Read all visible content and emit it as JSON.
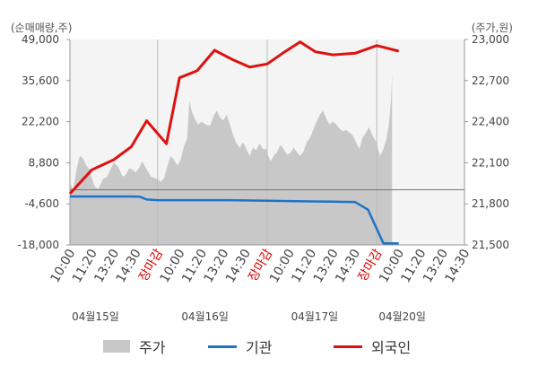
{
  "chart_data": {
    "type": "line",
    "left_axis_unit": "(순매매량,주)",
    "right_axis_unit": "(주가,원)",
    "left_ticks": [
      "49,000",
      "35,600",
      "22,200",
      "8,800",
      "-4,600",
      "-18,000"
    ],
    "left_range": [
      -18000,
      49000
    ],
    "right_ticks": [
      "23,000",
      "22,700",
      "22,400",
      "22,100",
      "21,800",
      "21,500"
    ],
    "right_range": [
      21500,
      23000
    ],
    "x_ticks": [
      {
        "label": "10:00",
        "color": "#444444"
      },
      {
        "label": "11:20",
        "color": "#444444"
      },
      {
        "label": "13:20",
        "color": "#444444"
      },
      {
        "label": "14:30",
        "color": "#444444"
      },
      {
        "label": "장마감",
        "color": "#dd0000"
      },
      {
        "label": "10:00",
        "color": "#444444"
      },
      {
        "label": "11:20",
        "color": "#444444"
      },
      {
        "label": "13:20",
        "color": "#444444"
      },
      {
        "label": "14:30",
        "color": "#444444"
      },
      {
        "label": "장마감",
        "color": "#dd0000"
      },
      {
        "label": "10:00",
        "color": "#444444"
      },
      {
        "label": "11:20",
        "color": "#444444"
      },
      {
        "label": "13:20",
        "color": "#444444"
      },
      {
        "label": "14:30",
        "color": "#444444"
      },
      {
        "label": "장마감",
        "color": "#dd0000"
      },
      {
        "label": "10:00",
        "color": "#444444"
      },
      {
        "label": "11:20",
        "color": "#444444"
      },
      {
        "label": "13:20",
        "color": "#444444"
      },
      {
        "label": "14:30",
        "color": "#444444"
      }
    ],
    "date_labels": [
      {
        "label": "04월15일",
        "at_tick": 1
      },
      {
        "label": "04월16일",
        "at_tick": 6
      },
      {
        "label": "04월17일",
        "at_tick": 11
      },
      {
        "label": "04월20일",
        "at_tick": 15
      }
    ],
    "day_separators_after_tick": [
      4,
      9,
      14
    ],
    "grid": "vertical-day-separators",
    "legend_position": "bottom",
    "series": [
      {
        "name": "주가",
        "kind": "area",
        "axis": "right",
        "color": "#c8c8c8",
        "points": [
          [
            0.0,
            21950
          ],
          [
            0.15,
            21900
          ],
          [
            0.3,
            22050
          ],
          [
            0.45,
            22150
          ],
          [
            0.6,
            22130
          ],
          [
            0.75,
            22080
          ],
          [
            0.9,
            22050
          ],
          [
            1.0,
            21990
          ],
          [
            1.15,
            21920
          ],
          [
            1.3,
            21910
          ],
          [
            1.5,
            21980
          ],
          [
            1.7,
            22000
          ],
          [
            1.85,
            22050
          ],
          [
            2.0,
            22100
          ],
          [
            2.2,
            22070
          ],
          [
            2.4,
            22000
          ],
          [
            2.55,
            22010
          ],
          [
            2.7,
            22060
          ],
          [
            2.85,
            22050
          ],
          [
            3.0,
            22030
          ],
          [
            3.15,
            22060
          ],
          [
            3.3,
            22110
          ],
          [
            3.5,
            22050
          ],
          [
            3.7,
            22000
          ],
          [
            3.85,
            21990
          ],
          [
            4.0,
            21980
          ],
          [
            4.15,
            21960
          ],
          [
            4.3,
            21990
          ],
          [
            4.45,
            22080
          ],
          [
            4.6,
            22150
          ],
          [
            4.75,
            22120
          ],
          [
            4.9,
            22080
          ],
          [
            5.05,
            22120
          ],
          [
            5.2,
            22220
          ],
          [
            5.35,
            22280
          ],
          [
            5.45,
            22550
          ],
          [
            5.55,
            22480
          ],
          [
            5.7,
            22420
          ],
          [
            5.85,
            22380
          ],
          [
            6.0,
            22400
          ],
          [
            6.2,
            22380
          ],
          [
            6.4,
            22370
          ],
          [
            6.55,
            22440
          ],
          [
            6.7,
            22480
          ],
          [
            6.85,
            22430
          ],
          [
            7.0,
            22410
          ],
          [
            7.15,
            22450
          ],
          [
            7.3,
            22380
          ],
          [
            7.45,
            22300
          ],
          [
            7.6,
            22240
          ],
          [
            7.75,
            22210
          ],
          [
            7.9,
            22250
          ],
          [
            8.05,
            22200
          ],
          [
            8.2,
            22150
          ],
          [
            8.35,
            22210
          ],
          [
            8.5,
            22190
          ],
          [
            8.65,
            22240
          ],
          [
            8.8,
            22200
          ],
          [
            8.95,
            22200
          ],
          [
            9.0,
            22170
          ],
          [
            9.15,
            22110
          ],
          [
            9.3,
            22150
          ],
          [
            9.45,
            22180
          ],
          [
            9.6,
            22230
          ],
          [
            9.75,
            22200
          ],
          [
            9.9,
            22160
          ],
          [
            10.05,
            22170
          ],
          [
            10.2,
            22210
          ],
          [
            10.35,
            22180
          ],
          [
            10.5,
            22150
          ],
          [
            10.65,
            22180
          ],
          [
            10.8,
            22250
          ],
          [
            10.95,
            22280
          ],
          [
            11.1,
            22340
          ],
          [
            11.25,
            22400
          ],
          [
            11.4,
            22450
          ],
          [
            11.55,
            22480
          ],
          [
            11.7,
            22420
          ],
          [
            11.85,
            22380
          ],
          [
            12.0,
            22400
          ],
          [
            12.15,
            22380
          ],
          [
            12.3,
            22350
          ],
          [
            12.45,
            22330
          ],
          [
            12.6,
            22340
          ],
          [
            12.75,
            22320
          ],
          [
            12.9,
            22300
          ],
          [
            13.05,
            22250
          ],
          [
            13.2,
            22200
          ],
          [
            13.35,
            22280
          ],
          [
            13.5,
            22320
          ],
          [
            13.65,
            22360
          ],
          [
            13.8,
            22300
          ],
          [
            13.95,
            22260
          ],
          [
            14.0,
            22230
          ],
          [
            14.15,
            22150
          ],
          [
            14.3,
            22200
          ],
          [
            14.45,
            22280
          ],
          [
            14.55,
            22380
          ],
          [
            14.65,
            22560
          ],
          [
            14.7,
            22750
          ]
        ]
      },
      {
        "name": "기관",
        "kind": "line",
        "axis": "left",
        "color": "#1e73c8",
        "points": [
          [
            0.0,
            -2200
          ],
          [
            1.0,
            -2200
          ],
          [
            2.0,
            -2200
          ],
          [
            2.8,
            -2200
          ],
          [
            3.2,
            -2300
          ],
          [
            3.5,
            -3200
          ],
          [
            4.0,
            -3400
          ],
          [
            5.0,
            -3400
          ],
          [
            6.0,
            -3400
          ],
          [
            7.0,
            -3400
          ],
          [
            8.0,
            -3500
          ],
          [
            9.0,
            -3600
          ],
          [
            10.0,
            -3700
          ],
          [
            11.0,
            -3800
          ],
          [
            12.0,
            -3900
          ],
          [
            12.5,
            -3950
          ],
          [
            13.0,
            -4000
          ],
          [
            13.6,
            -6500
          ],
          [
            14.3,
            -17500
          ],
          [
            15.0,
            -17500
          ]
        ]
      },
      {
        "name": "외국인",
        "kind": "line",
        "axis": "left",
        "color": "#dd1111",
        "points": [
          [
            0.0,
            -1300
          ],
          [
            1.0,
            6500
          ],
          [
            2.0,
            9800
          ],
          [
            2.8,
            14000
          ],
          [
            3.5,
            22500
          ],
          [
            4.4,
            15000
          ],
          [
            5.0,
            36500
          ],
          [
            5.8,
            38800
          ],
          [
            6.6,
            45500
          ],
          [
            7.4,
            42500
          ],
          [
            8.2,
            40000
          ],
          [
            9.0,
            41000
          ],
          [
            9.8,
            45000
          ],
          [
            10.5,
            48200
          ],
          [
            11.2,
            45000
          ],
          [
            12.0,
            44000
          ],
          [
            13.0,
            44500
          ],
          [
            14.0,
            47000
          ],
          [
            15.0,
            45200
          ]
        ]
      }
    ]
  }
}
